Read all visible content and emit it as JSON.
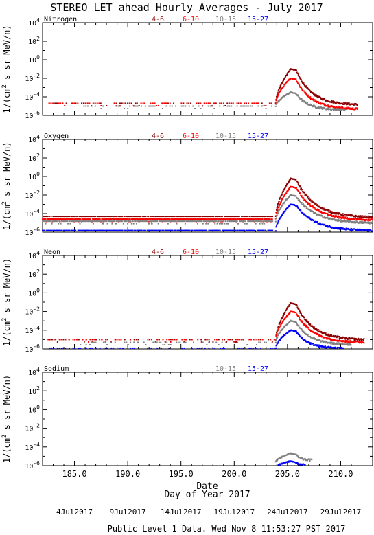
{
  "title": "STEREO LET ahead Hourly Averages - July 2017",
  "xlabel": "Day of Year 2017",
  "date_axis_label": "Date",
  "footer": "Public Level 1 Data. Wed Nov  8 11:53:27 PST 2017",
  "colors": {
    "4-6": "#8b0000",
    "6-10": "#ff0000",
    "10-15": "#808080",
    "15-27": "#0000ff"
  },
  "date_ticks": [
    {
      "doy": 185.0,
      "label": "4Jul2017"
    },
    {
      "doy": 190.0,
      "label": "9Jul2017"
    },
    {
      "doy": 195.0,
      "label": "14Jul2017"
    },
    {
      "doy": 200.0,
      "label": "19Jul2017"
    },
    {
      "doy": 205.0,
      "label": "24Jul2017"
    },
    {
      "doy": 210.0,
      "label": "29Jul2017"
    }
  ],
  "chart_data": [
    {
      "type": "scatter",
      "panel": "Nitrogen",
      "ylabel": "1/(cm2 s sr MeV/n)",
      "yscale": "log",
      "xlim": [
        182,
        213
      ],
      "ylim": [
        1e-06,
        10000.0
      ],
      "yticks": [
        "10^4",
        "10^2",
        "10^0",
        "10^-2",
        "10^-4",
        "10^-6"
      ],
      "xticks": [
        "185.0",
        "190.0",
        "195.0",
        "200.0",
        "205.0",
        "210.0"
      ],
      "legend": [
        "4-6",
        "6-10",
        "10-15",
        "15-27"
      ],
      "series": [
        {
          "name": "4-6",
          "background": 2e-05,
          "background_range": [
            182.6,
            203.6
          ],
          "peak": {
            "x": 205.3,
            "y": 0.1
          },
          "decay_to": {
            "x": 211.6,
            "y": 1.5e-05
          }
        },
        {
          "name": "6-10",
          "background": 2e-05,
          "background_range": [
            182.6,
            203.6
          ],
          "peak": {
            "x": 205.3,
            "y": 0.01
          },
          "decay_to": {
            "x": 211.6,
            "y": 5e-06
          }
        },
        {
          "name": "10-15",
          "background": 1e-05,
          "background_range": [
            185.5,
            203.6
          ],
          "peak": {
            "x": 205.3,
            "y": 0.0003
          },
          "decay_to": {
            "x": 210.4,
            "y": 4e-06
          }
        },
        {
          "name": "15-27",
          "background": null,
          "peak": null
        }
      ]
    },
    {
      "type": "scatter",
      "panel": "Oxygen",
      "ylabel": "1/(cm2 s sr MeV/n)",
      "yscale": "log",
      "xlim": [
        182,
        213
      ],
      "ylim": [
        1e-06,
        10000.0
      ],
      "yticks": [
        "10^4",
        "10^2",
        "10^0",
        "10^-2",
        "10^-4",
        "10^-6"
      ],
      "xticks": [
        "185.0",
        "190.0",
        "195.0",
        "200.0",
        "205.0",
        "210.0"
      ],
      "legend": [
        "4-6",
        "6-10",
        "10-15",
        "15-27"
      ],
      "series": [
        {
          "name": "4-6",
          "background": 5e-05,
          "background_range": [
            182.0,
            203.6
          ],
          "peak": {
            "x": 205.3,
            "y": 0.6
          },
          "decay_to": {
            "x": 213.0,
            "y": 4e-05
          }
        },
        {
          "name": "6-10",
          "background": 2.5e-05,
          "background_range": [
            182.0,
            203.6
          ],
          "peak": {
            "x": 205.3,
            "y": 0.08
          },
          "decay_to": {
            "x": 213.0,
            "y": 2e-05
          }
        },
        {
          "name": "10-15",
          "background": 1.5e-05,
          "background_range": [
            182.0,
            203.6
          ],
          "peak": {
            "x": 205.3,
            "y": 0.01
          },
          "decay_to": {
            "x": 213.0,
            "y": 1e-05
          }
        },
        {
          "name": "15-27",
          "background": 1.5e-06,
          "background_range": [
            182.0,
            203.6
          ],
          "peak": {
            "x": 205.3,
            "y": 0.001
          },
          "decay_to": {
            "x": 213.0,
            "y": 1.5e-06
          }
        }
      ]
    },
    {
      "type": "scatter",
      "panel": "Neon",
      "ylabel": "1/(cm2 s sr MeV/n)",
      "yscale": "log",
      "xlim": [
        182,
        213
      ],
      "ylim": [
        1e-06,
        10000.0
      ],
      "yticks": [
        "10^4",
        "10^2",
        "10^0",
        "10^-2",
        "10^-4",
        "10^-6"
      ],
      "xticks": [
        "185.0",
        "190.0",
        "195.0",
        "200.0",
        "205.0",
        "210.0"
      ],
      "legend": [
        "4-6",
        "6-10",
        "10-15",
        "15-27"
      ],
      "series": [
        {
          "name": "4-6",
          "background": 1e-05,
          "background_range": [
            182.5,
            203.8
          ],
          "peak": {
            "x": 205.3,
            "y": 0.08
          },
          "decay_to": {
            "x": 212.2,
            "y": 1e-05
          }
        },
        {
          "name": "6-10",
          "background": 1e-05,
          "background_range": [
            182.5,
            203.8
          ],
          "peak": {
            "x": 205.3,
            "y": 0.01
          },
          "decay_to": {
            "x": 212.2,
            "y": 5e-06
          }
        },
        {
          "name": "10-15",
          "background": 5e-06,
          "background_range": [
            185.0,
            203.8
          ],
          "peak": {
            "x": 205.3,
            "y": 0.001
          },
          "decay_to": {
            "x": 211.0,
            "y": 3e-06
          }
        },
        {
          "name": "15-27",
          "background": 1.2e-06,
          "background_range": [
            182.5,
            203.8
          ],
          "peak": {
            "x": 205.3,
            "y": 0.0001
          },
          "decay_to": {
            "x": 210.3,
            "y": 1.2e-06
          }
        }
      ]
    },
    {
      "type": "scatter",
      "panel": "Sodium",
      "ylabel": "1/(cm2 s sr MeV/n)",
      "yscale": "log",
      "xlim": [
        182,
        213
      ],
      "ylim": [
        1e-06,
        10000.0
      ],
      "yticks": [
        "10^4",
        "10^2",
        "10^0",
        "10^-2",
        "10^-4",
        "10^-6"
      ],
      "xticks": [
        "185.0",
        "190.0",
        "195.0",
        "200.0",
        "205.0",
        "210.0"
      ],
      "legend": [
        "10-15",
        "15-27"
      ],
      "series": [
        {
          "name": "10-15",
          "background": null,
          "peak": {
            "x": 205.3,
            "y": 2e-05
          },
          "decay_to": {
            "x": 207.3,
            "y": 4e-06
          }
        },
        {
          "name": "15-27",
          "background": null,
          "peak": {
            "x": 205.3,
            "y": 3e-06
          },
          "decay_to": {
            "x": 206.8,
            "y": 1.2e-06
          }
        }
      ]
    }
  ]
}
